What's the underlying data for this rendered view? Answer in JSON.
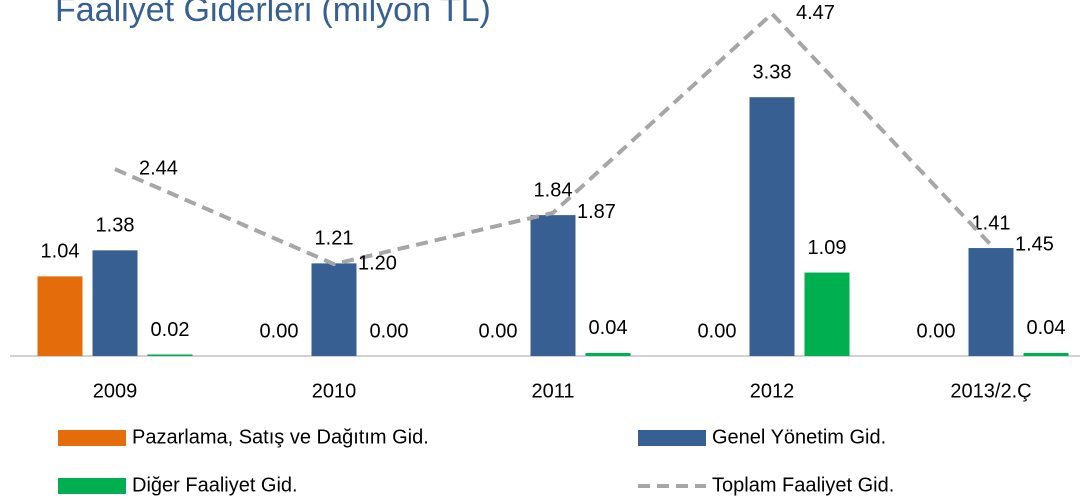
{
  "chart_data": {
    "type": "bar",
    "title": "Faaliyet Giderleri (milyon TL)",
    "categories": [
      "2009",
      "2010",
      "2011",
      "2012",
      "2013/2.Ç"
    ],
    "ylim": [
      0,
      4.65
    ],
    "series": [
      {
        "name": "Pazarlama, Satış ve Dağıtım Gid.",
        "color": "#e46c0a",
        "type": "bar",
        "values": [
          1.04,
          0,
          0,
          0,
          0
        ],
        "value_labels": [
          "1.04",
          "0.00",
          "0.00",
          "0.00",
          "0.00"
        ]
      },
      {
        "name": "Genel Yönetim Gid.",
        "color": "#375f91",
        "type": "bar",
        "values": [
          1.38,
          1.21,
          1.84,
          3.38,
          1.41
        ],
        "value_labels": [
          "1.38",
          "1.21",
          "1.84",
          "3.38",
          "1.41"
        ]
      },
      {
        "name": "Diğer Faaliyet Gid.",
        "color": "#00b050",
        "type": "bar",
        "values": [
          0.02,
          0,
          0.04,
          1.09,
          0.04
        ],
        "value_labels": [
          "0.02",
          "0.00",
          "0.04",
          "1.09",
          "0.04"
        ]
      },
      {
        "name": "Toplam Faaliyet Gid.",
        "color": "#a6a6a6",
        "type": "line",
        "values": [
          2.44,
          1.2,
          1.87,
          4.47,
          1.45
        ],
        "value_labels": [
          "2.44",
          "1.20",
          "1.87",
          "4.47",
          "1.45"
        ]
      }
    ]
  }
}
